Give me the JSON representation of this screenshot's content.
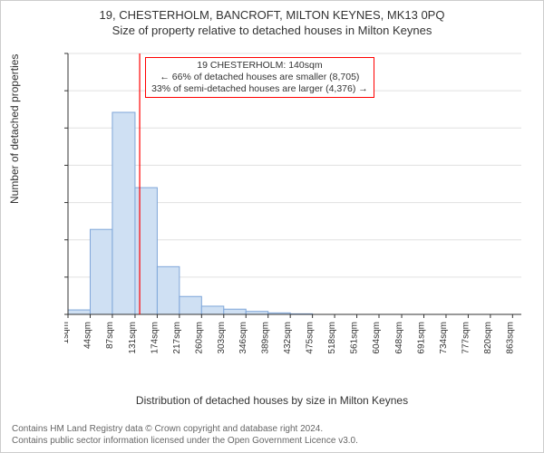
{
  "title_line1": "19, CHESTERHOLM, BANCROFT, MILTON KEYNES, MK13 0PQ",
  "title_line2": "Size of property relative to detached houses in Milton Keynes",
  "ylabel": "Number of detached properties",
  "xlabel": "Distribution of detached houses by size in Milton Keynes",
  "footer_line1": "Contains HM Land Registry data © Crown copyright and database right 2024.",
  "footer_line2": "Contains public sector information licensed under the Open Government Licence v3.0.",
  "annotation": {
    "line1": "19 CHESTERHOLM: 140sqm",
    "line2": "← 66% of detached houses are smaller (8,705)",
    "line3": "33% of semi-detached houses are larger (4,376) →"
  },
  "chart": {
    "type": "histogram",
    "bar_fill": "#cfe0f3",
    "bar_stroke": "#7fa6d9",
    "background": "#ffffff",
    "grid_color": "#e0e0e0",
    "axis_color": "#333333",
    "ref_line_color": "#ff0000",
    "ref_value_x": 140,
    "annotation_border": "#ff0000",
    "xtick_labels": [
      "1sqm",
      "44sqm",
      "87sqm",
      "131sqm",
      "174sqm",
      "217sqm",
      "260sqm",
      "303sqm",
      "346sqm",
      "389sqm",
      "432sqm",
      "475sqm",
      "518sqm",
      "561sqm",
      "604sqm",
      "648sqm",
      "691sqm",
      "734sqm",
      "777sqm",
      "820sqm",
      "863sqm"
    ],
    "xtick_values": [
      1,
      44,
      87,
      131,
      174,
      217,
      260,
      303,
      346,
      389,
      432,
      475,
      518,
      561,
      604,
      648,
      691,
      734,
      777,
      820,
      863
    ],
    "ylim": [
      0,
      7000
    ],
    "ytick_step": 1000,
    "xlim": [
      1,
      880
    ],
    "bars": [
      {
        "x0": 1,
        "x1": 44,
        "y": 120
      },
      {
        "x0": 44,
        "x1": 87,
        "y": 2280
      },
      {
        "x0": 87,
        "x1": 131,
        "y": 5420
      },
      {
        "x0": 131,
        "x1": 174,
        "y": 3400
      },
      {
        "x0": 174,
        "x1": 217,
        "y": 1280
      },
      {
        "x0": 217,
        "x1": 260,
        "y": 480
      },
      {
        "x0": 260,
        "x1": 303,
        "y": 220
      },
      {
        "x0": 303,
        "x1": 346,
        "y": 140
      },
      {
        "x0": 346,
        "x1": 389,
        "y": 80
      },
      {
        "x0": 389,
        "x1": 432,
        "y": 40
      },
      {
        "x0": 432,
        "x1": 475,
        "y": 15
      },
      {
        "x0": 475,
        "x1": 518,
        "y": 0
      },
      {
        "x0": 518,
        "x1": 561,
        "y": 0
      },
      {
        "x0": 561,
        "x1": 604,
        "y": 0
      },
      {
        "x0": 604,
        "x1": 648,
        "y": 0
      },
      {
        "x0": 648,
        "x1": 691,
        "y": 0
      },
      {
        "x0": 691,
        "x1": 734,
        "y": 0
      },
      {
        "x0": 734,
        "x1": 777,
        "y": 0
      },
      {
        "x0": 777,
        "x1": 820,
        "y": 0
      },
      {
        "x0": 820,
        "x1": 863,
        "y": 0
      }
    ],
    "title_fontsize": 13,
    "label_fontsize": 12,
    "tick_fontsize": 10,
    "annot_fontsize": 10.5,
    "footer_fontsize": 10
  }
}
